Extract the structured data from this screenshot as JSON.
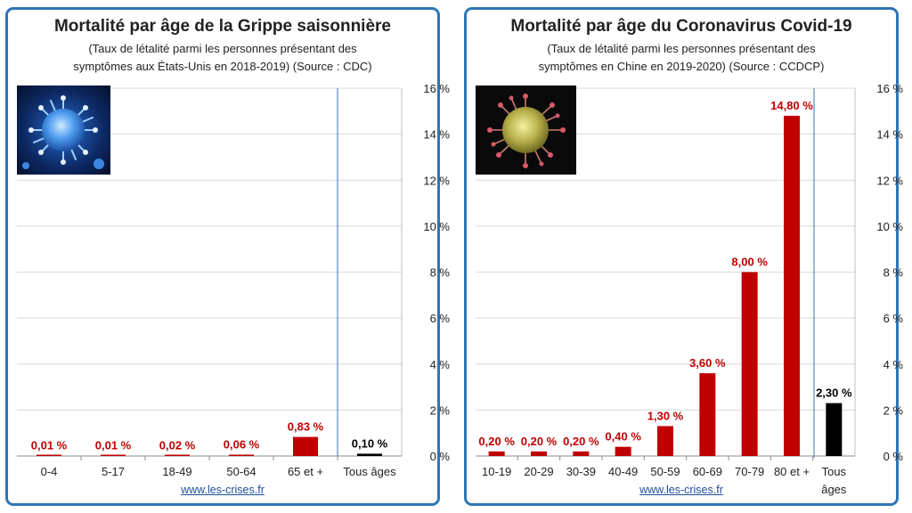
{
  "colors": {
    "accent": "#c00000",
    "total": "#000000",
    "frame": "#2e75b6",
    "grid": "#d9d9d9"
  },
  "icons": {
    "left_image": "flu-virus-image",
    "right_image": "coronavirus-image"
  },
  "footer_link": "www.les-crises.fr",
  "charts": [
    {
      "title": "Mortalité par âge de la Grippe saisonnière",
      "subtitle_line1": "(Taux de létalité parmi les personnes présentant des",
      "subtitle_line2": "symptômes aux États-Unis en 2018-2019) (Source : CDC)"
    },
    {
      "title": "Mortalité par âge du Coronavirus Covid-19",
      "subtitle_line1": "(Taux de létalité parmi les personnes présentant des",
      "subtitle_line2": "symptômes en Chine en 2019-2020) (Source : CCDCP)"
    }
  ],
  "chart_data": [
    {
      "type": "bar",
      "title": "Mortalité par âge de la Grippe saisonnière",
      "categories": [
        "0-4",
        "5-17",
        "18-49",
        "50-64",
        "65 et +",
        "Tous âges"
      ],
      "values": [
        0.01,
        0.01,
        0.02,
        0.06,
        0.83,
        0.1
      ],
      "value_labels": [
        "0,01 %",
        "0,01 %",
        "0,02 %",
        "0,06 %",
        "0,83 %",
        "0,10 %"
      ],
      "ylim": [
        0,
        16
      ],
      "yticks": [
        0,
        2,
        4,
        6,
        8,
        10,
        12,
        14,
        16
      ],
      "ytick_labels": [
        "0 %",
        "2 %",
        "4 %",
        "6 %",
        "8 %",
        "10 %",
        "12 %",
        "14 %",
        "16 %"
      ],
      "grid": true,
      "y_axis_side": "right"
    },
    {
      "type": "bar",
      "title": "Mortalité par âge du Coronavirus Covid-19",
      "categories": [
        "10-19",
        "20-29",
        "30-39",
        "40-49",
        "50-59",
        "60-69",
        "70-79",
        "80 et +",
        "Tous âges"
      ],
      "values": [
        0.2,
        0.2,
        0.2,
        0.4,
        1.3,
        3.6,
        8.0,
        14.8,
        2.3
      ],
      "value_labels": [
        "0,20 %",
        "0,20 %",
        "0,20 %",
        "0,40 %",
        "1,30 %",
        "3,60 %",
        "8,00 %",
        "14,80 %",
        "2,30 %"
      ],
      "ylim": [
        0,
        16
      ],
      "yticks": [
        0,
        2,
        4,
        6,
        8,
        10,
        12,
        14,
        16
      ],
      "ytick_labels": [
        "0 %",
        "2 %",
        "4 %",
        "6 %",
        "8 %",
        "10 %",
        "12 %",
        "14 %",
        "16 %"
      ],
      "grid": true,
      "y_axis_side": "right"
    }
  ]
}
